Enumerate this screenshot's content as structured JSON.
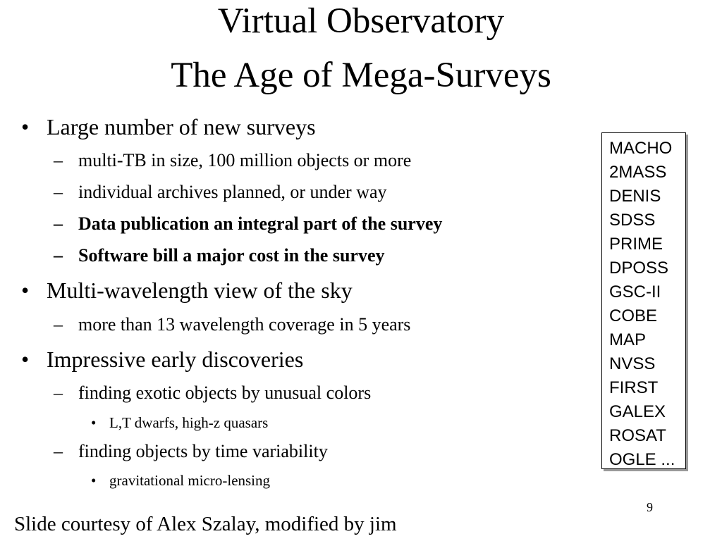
{
  "title": {
    "line1": "Virtual Observatory",
    "line2": "The Age of Mega-Surveys"
  },
  "bullets": {
    "b1": {
      "text": "Large number of new surveys",
      "subs": [
        "multi-TB in size, 100 million objects or more",
        "individual archives planned, or under way",
        "Data publication an integral part of the survey",
        "Software bill a major cost in the survey"
      ]
    },
    "b2": {
      "text": "Multi-wavelength view of the sky",
      "subs": [
        "more than 13 wavelength coverage in 5 years"
      ]
    },
    "b3": {
      "text": "Impressive early discoveries",
      "subs": [
        "finding exotic objects by unusual colors",
        "finding objects by time variability"
      ],
      "subsubs": [
        "L,T dwarfs, high-z quasars",
        "gravitational micro-lensing"
      ]
    }
  },
  "markers": {
    "bullet": "•",
    "dash": "–"
  },
  "surveys": [
    "MACHO",
    "2MASS",
    "DENIS",
    "SDSS",
    "PRIME",
    "DPOSS",
    "GSC-II",
    "COBE",
    "MAP",
    "NVSS",
    "FIRST",
    "GALEX",
    "ROSAT",
    "OGLE ..."
  ],
  "page_number": "9",
  "footer": "Slide courtesy of Alex Szalay, modified by jim"
}
